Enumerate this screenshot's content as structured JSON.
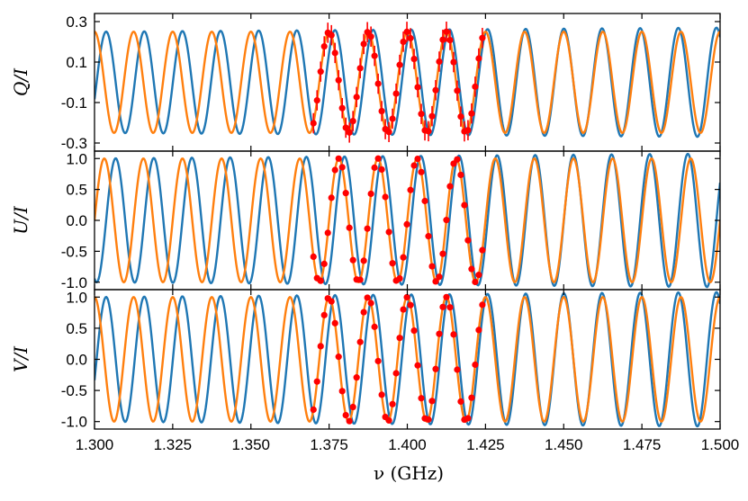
{
  "chart_data": {
    "type": "line",
    "xlabel": "ν (GHz)",
    "x_range": [
      1.3,
      1.5
    ],
    "x_ticks": [
      "1.300",
      "1.325",
      "1.350",
      "1.375",
      "1.400",
      "1.425",
      "1.450",
      "1.475",
      "1.500"
    ],
    "x_tick_values": [
      1.3,
      1.325,
      1.35,
      1.375,
      1.4,
      1.425,
      1.45,
      1.475,
      1.5
    ],
    "colors": {
      "model_a": "#1f77b4",
      "model_b": "#ff7f0e",
      "observed": "#ff0000"
    },
    "observed_range": [
      1.37,
      1.424
    ],
    "panels": [
      {
        "ylabel": "Q/I",
        "ylim": [
          -0.34,
          0.34
        ],
        "y_ticks": [
          "0.3",
          "0.1",
          "-0.1",
          "-0.3"
        ],
        "y_tick_values": [
          0.3,
          0.1,
          -0.1,
          -0.3
        ],
        "amplitude": 0.25,
        "fn": "cos",
        "err": 0.05
      },
      {
        "ylabel": "U/I",
        "ylim": [
          -1.12,
          1.12
        ],
        "y_ticks": [
          "1.0",
          "0.5",
          "0.0",
          "-0.5",
          "-1.0"
        ],
        "y_tick_values": [
          1.0,
          0.5,
          0.0,
          -0.5,
          -1.0
        ],
        "amplitude": 1.0,
        "fn": "sin",
        "err": 0.0
      },
      {
        "ylabel": "V/I",
        "ylim": [
          -1.12,
          1.12
        ],
        "y_ticks": [
          "1.0",
          "0.5",
          "0.0",
          "-0.5",
          "-1.0"
        ],
        "y_tick_values": [
          1.0,
          0.5,
          0.0,
          -0.5,
          -1.0
        ],
        "amplitude": 1.0,
        "fn": "cos",
        "err": 0.0
      }
    ],
    "series": [
      {
        "key": "model_a",
        "freq_per_ghz": 82,
        "phase": 0.6,
        "amp_growth": 0.08
      },
      {
        "key": "model_b",
        "freq_per_ghz": 80,
        "phase": 0.0,
        "amp_growth": 0.0
      }
    ],
    "observed_points": 48
  }
}
